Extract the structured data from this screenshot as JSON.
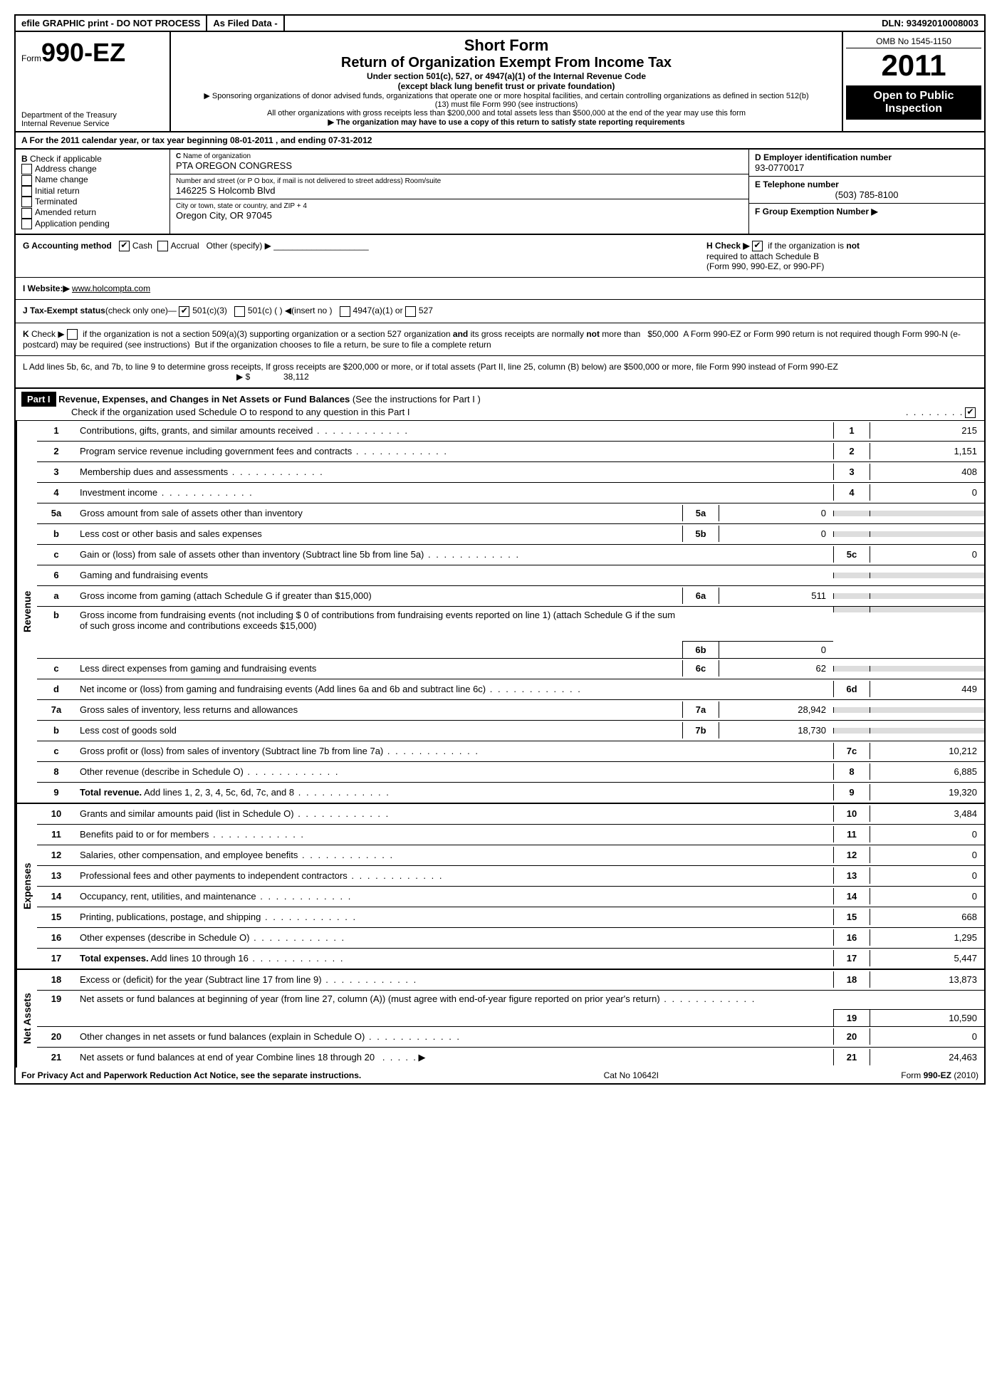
{
  "topbar": {
    "efile": "efile GRAPHIC print - DO NOT PROCESS",
    "asfiled": "As Filed Data -",
    "dln": "DLN: 93492010008003"
  },
  "header": {
    "form_prefix": "Form",
    "form_no": "990-EZ",
    "dept": "Department of the Treasury",
    "irs": "Internal Revenue Service",
    "short": "Short Form",
    "title": "Return of Organization Exempt From Income Tax",
    "under": "Under section 501(c), 527, or 4947(a)(1) of the Internal Revenue Code",
    "except": "(except black lung benefit trust or private foundation)",
    "spons": "▶ Sponsoring organizations of donor advised funds, organizations that operate one or more hospital facilities, and certain controlling organizations as defined in section 512(b)(13) must file Form 990 (see instructions)",
    "other": "All other organizations with gross receipts less than $200,000 and total assets less than $500,000 at the end of the year may use this form",
    "state": "▶ The organization may have to use a copy of this return to satisfy state reporting requirements",
    "omb": "OMB No 1545-1150",
    "year": "2011",
    "open": "Open to Public Inspection"
  },
  "a": {
    "text": "A  For the 2011 calendar year, or tax year beginning 08-01-2011                   , and ending 07-31-2012"
  },
  "b": {
    "label": "B",
    "check": "Check if applicable",
    "items": [
      "Address change",
      "Name change",
      "Initial return",
      "Terminated",
      "Amended return",
      "Application pending"
    ]
  },
  "c": {
    "label": "C",
    "name_label": "Name of organization",
    "name": "PTA OREGON CONGRESS",
    "street_label": "Number and street (or P O box, if mail is not delivered to street address) Room/suite",
    "street": "146225 S Holcomb Blvd",
    "city_label": "City or town, state or country, and ZIP + 4",
    "city": "Oregon City, OR  97045"
  },
  "d": {
    "label": "D Employer identification number",
    "val": "93-0770017"
  },
  "e": {
    "label": "E Telephone number",
    "val": "(503) 785-8100"
  },
  "f": {
    "label": "F Group Exemption Number     ▶"
  },
  "g": {
    "label": "G Accounting method",
    "cash": "Cash",
    "accrual": "Accrual",
    "other": "Other (specify) ▶"
  },
  "h": {
    "text": "H   Check ▶",
    "after": "if the organization is",
    "not": "not",
    "req": "required to attach Schedule B",
    "forms": "(Form 990, 990-EZ, or 990-PF)"
  },
  "i": {
    "label": "I Website:▶",
    "val": "www.holcompta.com"
  },
  "j": {
    "label": "J Tax-Exempt status",
    "text": "(check only one)—",
    "c3": "501(c)(3)",
    "c": "501(c) (    ) ◀(insert no )",
    "a1": "4947(a)(1) or",
    "s527": "527"
  },
  "k": {
    "text": "K Check ▶      if the organization is not a section 509(a)(3) supporting organization or a section 527 organization",
    "and": "and",
    "rest": "its gross receipts are normally",
    "not": "not",
    "more": "more than   $50,000  A Form 990-EZ or Form 990 return is not required though Form 990-N (e-postcard) may be required (see instructions)  But if the organization chooses to file a return, be sure to file a complete return"
  },
  "l": {
    "text": "L Add lines 5b, 6c, and 7b, to line 9 to determine gross receipts, If gross receipts are $200,000 or more, or if total assets (Part II, line 25, column (B) below) are $500,000 or more, file Form 990 instead of Form 990-EZ",
    "arrow": "▶ $",
    "val": "38,112"
  },
  "part1": {
    "label": "Part I",
    "title": "Revenue, Expenses, and Changes in Net Assets or Fund Balances",
    "see": "(See the instructions for Part I )",
    "check": "Check if the organization used Schedule O to respond to any question in this Part I"
  },
  "sides": {
    "rev": "Revenue",
    "exp": "Expenses",
    "net": "Net Assets"
  },
  "lines": {
    "1": {
      "n": "1",
      "d": "Contributions, gifts, grants, and similar amounts received",
      "v": "215"
    },
    "2": {
      "n": "2",
      "d": "Program service revenue including government fees and contracts",
      "v": "1,151"
    },
    "3": {
      "n": "3",
      "d": "Membership dues and assessments",
      "v": "408"
    },
    "4": {
      "n": "4",
      "d": "Investment income",
      "v": "0"
    },
    "5a": {
      "n": "5a",
      "d": "Gross amount from sale of assets other than inventory",
      "sn": "5a",
      "sv": "0"
    },
    "5b": {
      "n": "b",
      "d": "Less cost or other basis and sales expenses",
      "sn": "5b",
      "sv": "0"
    },
    "5c": {
      "n": "c",
      "d": "Gain or (loss) from sale of assets other than inventory (Subtract line 5b from line 5a)",
      "bn": "5c",
      "v": "0"
    },
    "6": {
      "n": "6",
      "d": "Gaming and fundraising events"
    },
    "6a": {
      "n": "a",
      "d": "Gross income from gaming (attach Schedule G if greater than $15,000)",
      "sn": "6a",
      "sv": "511"
    },
    "6b": {
      "n": "b",
      "d": "Gross income from fundraising events (not including $ 0 of contributions from fundraising events reported on line 1) (attach Schedule G if the sum of such gross income and contributions exceeds $15,000)",
      "sn": "6b",
      "sv": "0"
    },
    "6c": {
      "n": "c",
      "d": "Less  direct expenses from gaming and fundraising events",
      "sn": "6c",
      "sv": "62"
    },
    "6d": {
      "n": "d",
      "d": "Net income or (loss) from gaming and fundraising events (Add lines 6a and 6b and subtract line 6c)",
      "bn": "6d",
      "v": "449"
    },
    "7a": {
      "n": "7a",
      "d": "Gross sales of inventory, less returns and allowances",
      "sn": "7a",
      "sv": "28,942"
    },
    "7b": {
      "n": "b",
      "d": "Less  cost of goods sold",
      "sn": "7b",
      "sv": "18,730"
    },
    "7c": {
      "n": "c",
      "d": "Gross profit or (loss) from sales of inventory (Subtract line 7b from line 7a)",
      "bn": "7c",
      "v": "10,212"
    },
    "8": {
      "n": "8",
      "d": "Other revenue (describe in Schedule O)",
      "bn": "8",
      "v": "6,885"
    },
    "9": {
      "n": "9",
      "d": "Total revenue.",
      "d2": "Add lines 1, 2, 3, 4, 5c, 6d, 7c, and 8",
      "bn": "9",
      "v": "19,320"
    },
    "10": {
      "n": "10",
      "d": "Grants and similar amounts paid (list in Schedule O)",
      "bn": "10",
      "v": "3,484"
    },
    "11": {
      "n": "11",
      "d": "Benefits paid to or for members",
      "bn": "11",
      "v": "0"
    },
    "12": {
      "n": "12",
      "d": "Salaries, other compensation, and employee benefits",
      "bn": "12",
      "v": "0"
    },
    "13": {
      "n": "13",
      "d": "Professional fees and other payments to independent contractors",
      "bn": "13",
      "v": "0"
    },
    "14": {
      "n": "14",
      "d": "Occupancy, rent, utilities, and maintenance",
      "bn": "14",
      "v": "0"
    },
    "15": {
      "n": "15",
      "d": "Printing, publications, postage, and shipping",
      "bn": "15",
      "v": "668"
    },
    "16": {
      "n": "16",
      "d": "Other expenses (describe in Schedule O)",
      "bn": "16",
      "v": "1,295"
    },
    "17": {
      "n": "17",
      "d": "Total expenses.",
      "d2": "Add lines 10 through 16",
      "bn": "17",
      "v": "5,447"
    },
    "18": {
      "n": "18",
      "d": "Excess or (deficit) for the year (Subtract line 17 from line 9)",
      "bn": "18",
      "v": "13,873"
    },
    "19": {
      "n": "19",
      "d": "Net assets or fund balances at beginning of year (from line 27, column (A)) (must agree with end-of-year figure reported on prior year's return)",
      "bn": "19",
      "v": "10,590"
    },
    "20": {
      "n": "20",
      "d": "Other changes in net assets or fund balances (explain in Schedule O)",
      "bn": "20",
      "v": "0"
    },
    "21": {
      "n": "21",
      "d": "Net assets or fund balances at end of year  Combine lines 18 through 20",
      "bn": "21",
      "v": "24,463"
    }
  },
  "footer": {
    "privacy": "For Privacy Act and Paperwork Reduction Act Notice, see the separate instructions.",
    "cat": "Cat No 10642I",
    "form": "Form",
    "formno": "990-EZ",
    "yr": "(2010)"
  }
}
